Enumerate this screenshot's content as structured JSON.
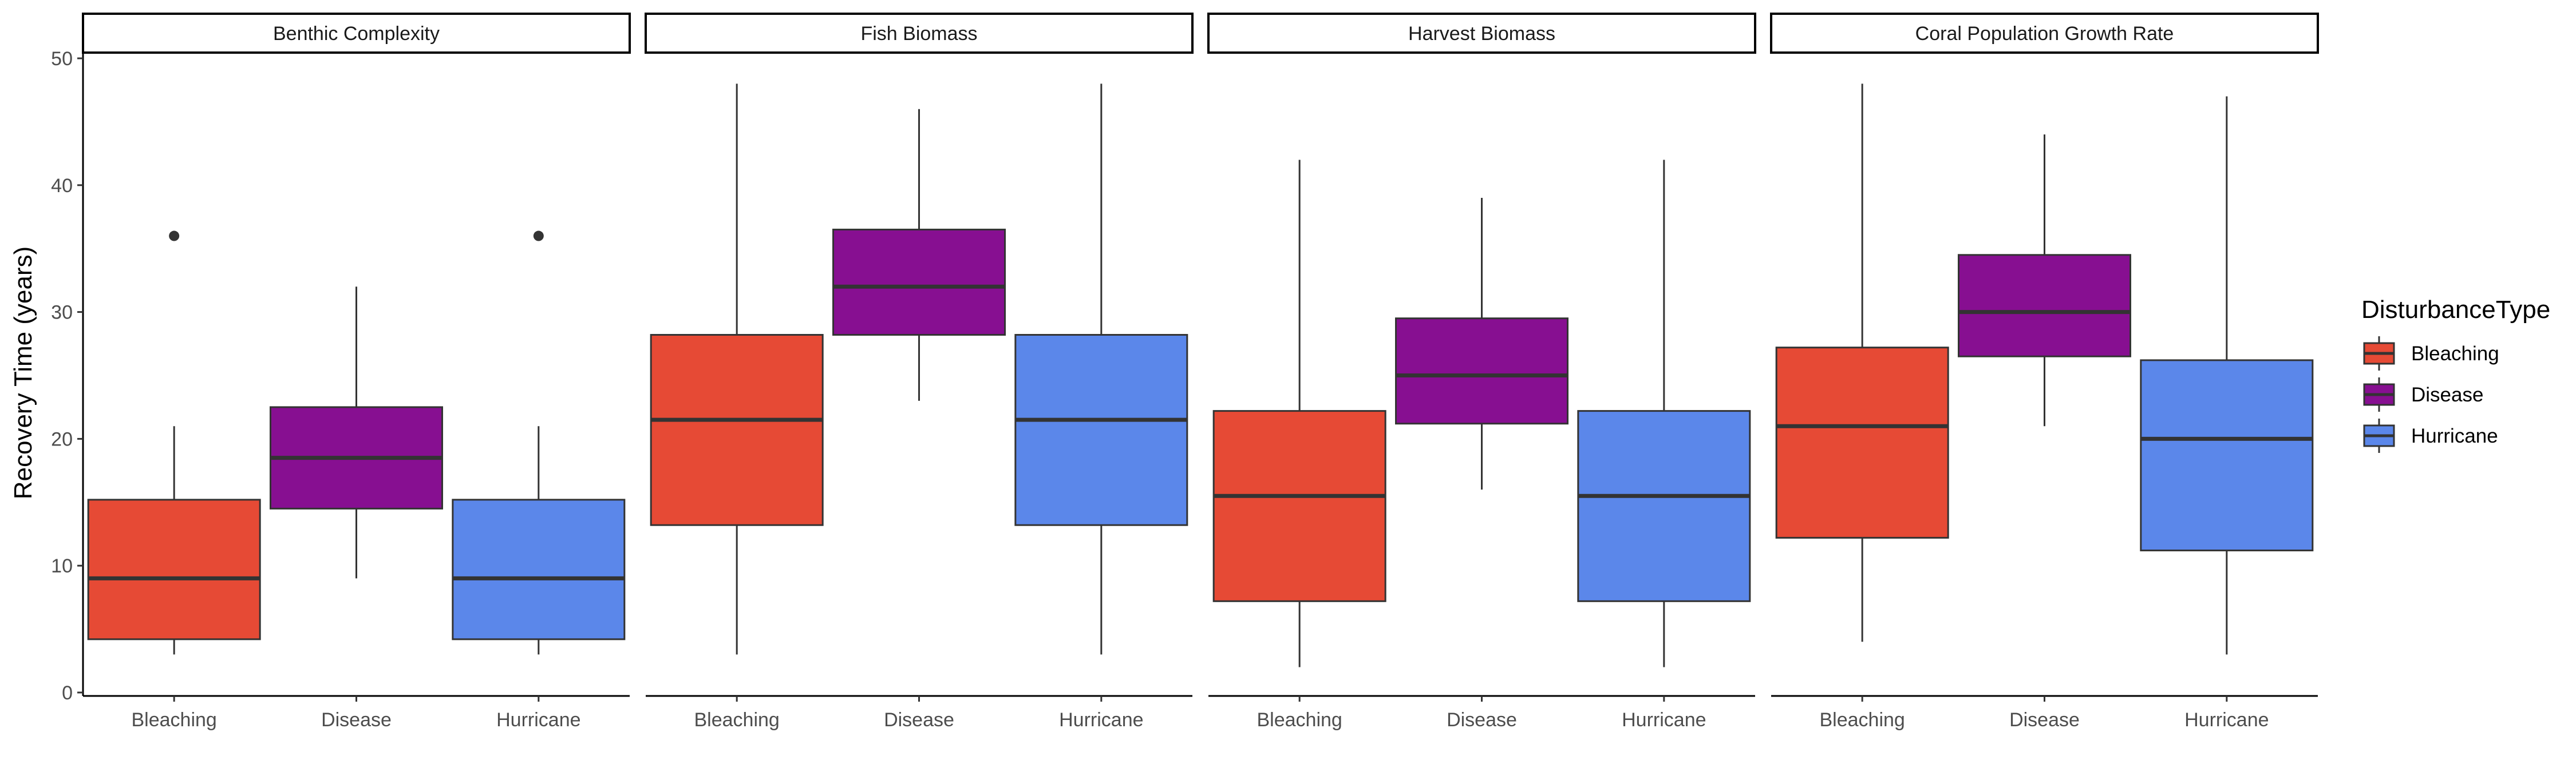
{
  "chart_data": {
    "type": "boxplot",
    "ylabel": "Recovery Time (years)",
    "ylim": [
      0,
      50
    ],
    "yticks": [
      0,
      10,
      20,
      30,
      40,
      50
    ],
    "grid": false,
    "legend": {
      "title": "DisturbanceType",
      "position": "right",
      "items": [
        {
          "name": "Bleaching",
          "color": "#E64A35"
        },
        {
          "name": "Disease",
          "color": "#870F91"
        },
        {
          "name": "Hurricane",
          "color": "#5B87EA"
        }
      ]
    },
    "categories": [
      "Bleaching",
      "Disease",
      "Hurricane"
    ],
    "panels": [
      {
        "title": "Benthic Complexity",
        "boxes": [
          {
            "category": "Bleaching",
            "min": 3,
            "q1": 4.2,
            "median": 9,
            "q3": 15.2,
            "max": 21,
            "outliers": [
              36
            ]
          },
          {
            "category": "Disease",
            "min": 9,
            "q1": 14.5,
            "median": 18.5,
            "q3": 22.5,
            "max": 32,
            "outliers": []
          },
          {
            "category": "Hurricane",
            "min": 3,
            "q1": 4.2,
            "median": 9,
            "q3": 15.2,
            "max": 21,
            "outliers": [
              36
            ]
          }
        ]
      },
      {
        "title": "Fish Biomass",
        "boxes": [
          {
            "category": "Bleaching",
            "min": 3,
            "q1": 13.2,
            "median": 21.5,
            "q3": 28.2,
            "max": 48,
            "outliers": []
          },
          {
            "category": "Disease",
            "min": 23,
            "q1": 28.2,
            "median": 32,
            "q3": 36.5,
            "max": 46,
            "outliers": []
          },
          {
            "category": "Hurricane",
            "min": 3,
            "q1": 13.2,
            "median": 21.5,
            "q3": 28.2,
            "max": 48,
            "outliers": []
          }
        ]
      },
      {
        "title": "Harvest Biomass",
        "boxes": [
          {
            "category": "Bleaching",
            "min": 2,
            "q1": 7.2,
            "median": 15.5,
            "q3": 22.2,
            "max": 42,
            "outliers": []
          },
          {
            "category": "Disease",
            "min": 16,
            "q1": 21.2,
            "median": 25,
            "q3": 29.5,
            "max": 39,
            "outliers": []
          },
          {
            "category": "Hurricane",
            "min": 2,
            "q1": 7.2,
            "median": 15.5,
            "q3": 22.2,
            "max": 42,
            "outliers": []
          }
        ]
      },
      {
        "title": "Coral Population Growth Rate",
        "boxes": [
          {
            "category": "Bleaching",
            "min": 4,
            "q1": 12.2,
            "median": 21,
            "q3": 27.2,
            "max": 48,
            "outliers": []
          },
          {
            "category": "Disease",
            "min": 21,
            "q1": 26.5,
            "median": 30,
            "q3": 34.5,
            "max": 44,
            "outliers": []
          },
          {
            "category": "Hurricane",
            "min": 3,
            "q1": 11.2,
            "median": 20,
            "q3": 26.2,
            "max": 47,
            "outliers": []
          }
        ]
      }
    ]
  }
}
